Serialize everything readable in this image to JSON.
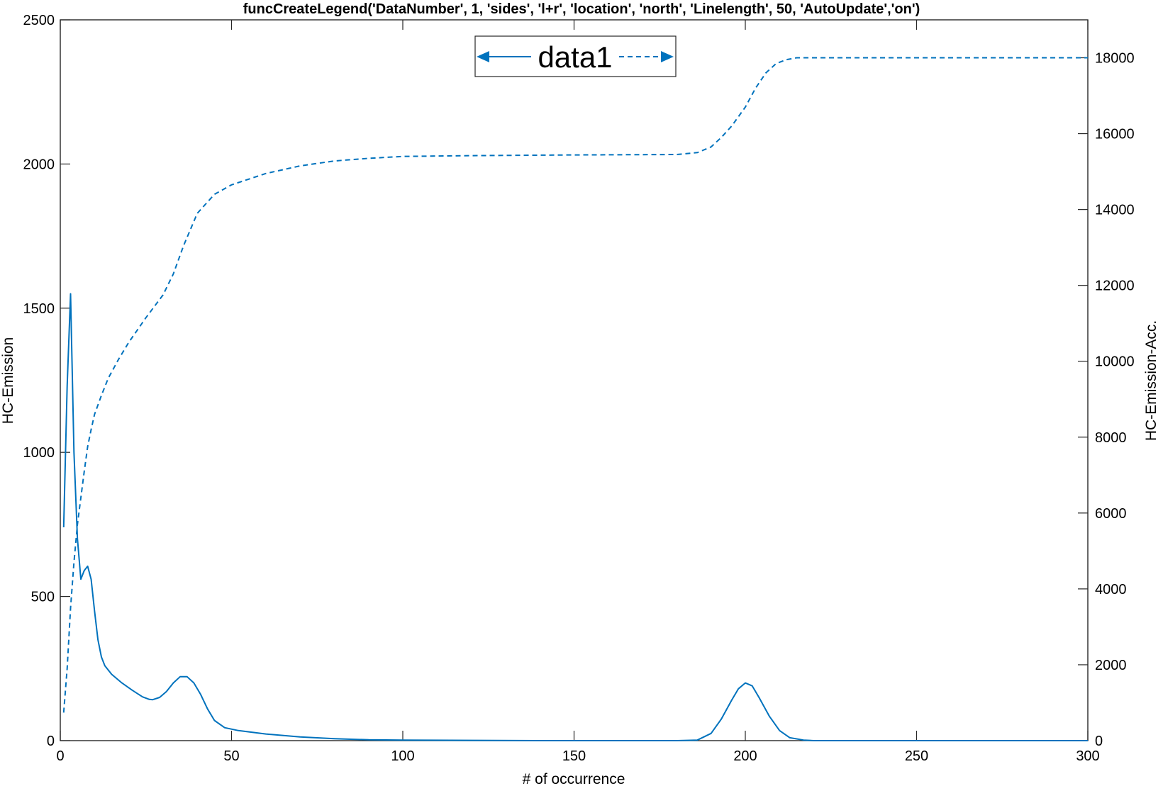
{
  "chart_data": {
    "type": "line",
    "title": "funcCreateLegend('DataNumber', 1, 'sides', 'l+r', 'location', 'north', 'Linelength', 50, 'AutoUpdate','on')",
    "xlabel": "# of occurrence",
    "ylabel_left": "HC-Emission",
    "ylabel_right": "HC-Emission-Acc.",
    "xlim": [
      0,
      300
    ],
    "ylim_left": [
      0,
      2500
    ],
    "ylim_right": [
      0,
      19000
    ],
    "xticks": [
      "0",
      "50",
      "100",
      "150",
      "200",
      "250",
      "300"
    ],
    "yticks_left": [
      "0",
      "500",
      "1000",
      "1500",
      "2000",
      "2500"
    ],
    "yticks_right": [
      "0",
      "2000",
      "4000",
      "6000",
      "8000",
      "10000",
      "12000",
      "14000",
      "16000",
      "18000"
    ],
    "grid": false,
    "legend_location": "north",
    "color": "#0072BD",
    "series": [
      {
        "name": "data1",
        "axis": "left",
        "style": "solid",
        "x": [
          1,
          2,
          3,
          4,
          5,
          6,
          7,
          8,
          9,
          10,
          11,
          12,
          13,
          15,
          18,
          21,
          24,
          26,
          27,
          29,
          31,
          33,
          35,
          37,
          39,
          41,
          43,
          45,
          48,
          52,
          60,
          70,
          80,
          90,
          100,
          120,
          140,
          160,
          180,
          186,
          190,
          193,
          196,
          198,
          200,
          202,
          204,
          207,
          210,
          213,
          217,
          220,
          250,
          300
        ],
        "y": [
          740,
          1230,
          1550,
          1000,
          700,
          560,
          590,
          605,
          560,
          450,
          350,
          290,
          260,
          230,
          200,
          175,
          152,
          143,
          142,
          150,
          170,
          200,
          222,
          222,
          200,
          160,
          110,
          70,
          45,
          35,
          23,
          13,
          7,
          3,
          2,
          1,
          0,
          0,
          0,
          2,
          25,
          75,
          140,
          180,
          200,
          190,
          150,
          85,
          35,
          10,
          2,
          0,
          0,
          0
        ]
      },
      {
        "name": "data1",
        "axis": "right",
        "style": "dashed",
        "x": [
          1,
          2,
          3,
          4,
          5,
          6,
          7,
          8,
          9,
          10,
          12,
          14,
          17,
          20,
          25,
          30,
          33,
          36,
          40,
          45,
          50,
          60,
          70,
          80,
          90,
          100,
          120,
          150,
          180,
          186,
          190,
          193,
          196,
          200,
          203,
          206,
          209,
          212,
          215,
          220,
          250,
          300
        ],
        "y": [
          740,
          1900,
          3500,
          4700,
          5700,
          6400,
          7100,
          7750,
          8200,
          8600,
          9100,
          9550,
          10050,
          10500,
          11150,
          11750,
          12300,
          13050,
          13900,
          14400,
          14650,
          14950,
          15150,
          15280,
          15350,
          15400,
          15420,
          15440,
          15450,
          15500,
          15650,
          15900,
          16200,
          16700,
          17200,
          17600,
          17850,
          17950,
          18000,
          18000,
          18000,
          18000
        ]
      }
    ]
  },
  "legend": {
    "label": "data1"
  }
}
